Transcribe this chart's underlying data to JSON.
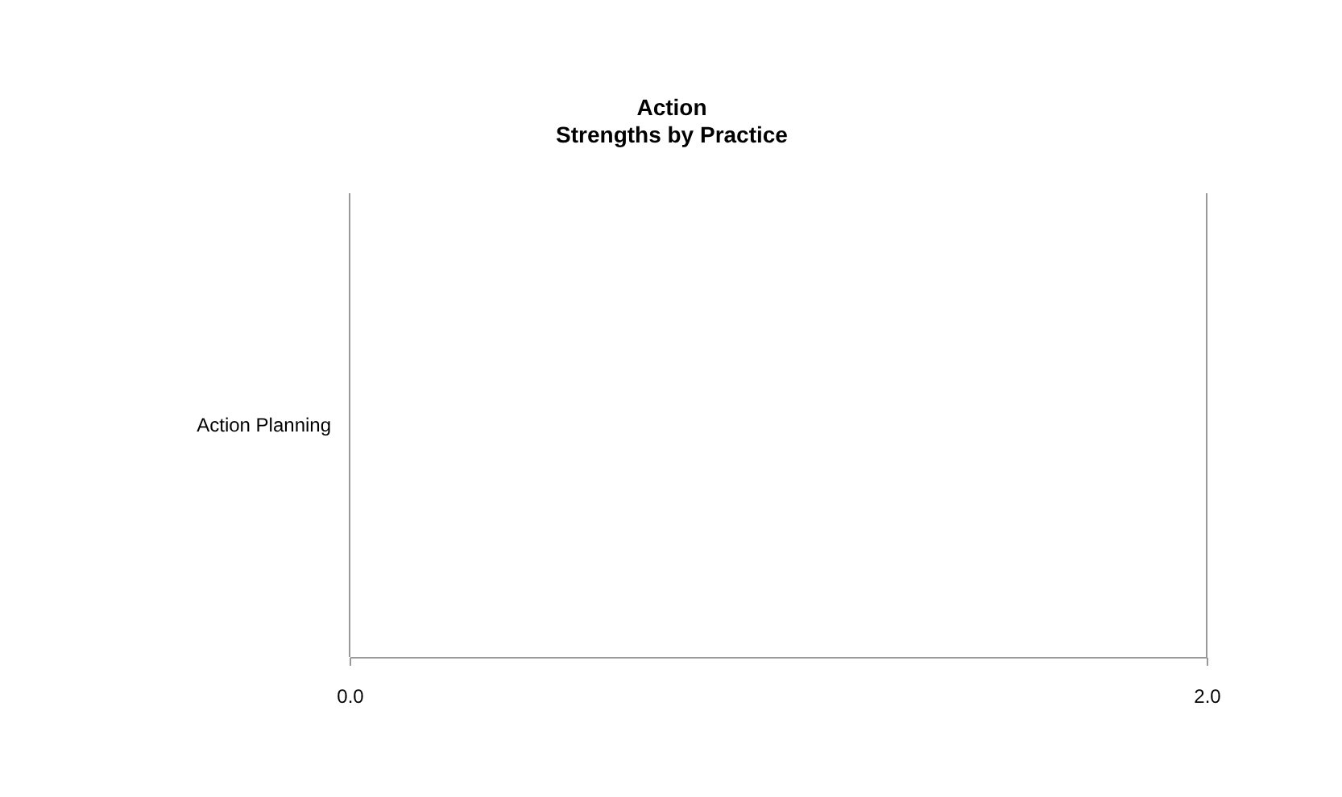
{
  "chart_data": {
    "type": "bar",
    "orientation": "horizontal",
    "title": "Action",
    "subtitle": "Strengths by Practice",
    "categories": [
      "Action Planning"
    ],
    "values": [
      null
    ],
    "xlim": [
      0,
      2
    ],
    "xticks": [
      {
        "value": 0,
        "label": "0.0"
      },
      {
        "value": 2,
        "label": "2.0"
      }
    ]
  }
}
